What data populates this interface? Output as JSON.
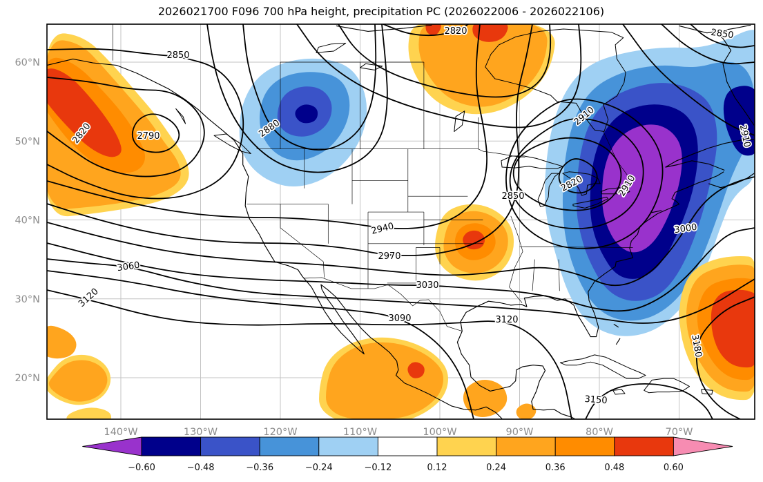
{
  "title": "2026021700 F096 700 hPa height, precipitation PC (2026022006 - 2026022106)",
  "chart_data": {
    "type": "heatmap",
    "subtype": "filled-contour weather map with overlaid geopotential height contours",
    "region": "North America",
    "title": "2026021700 F096 700 hPa height, precipitation PC (2026022006 - 2026022106)",
    "contour_field": {
      "name": "700 hPa geopotential height",
      "units": "m",
      "interval": 30,
      "levels": [
        2790,
        2820,
        2850,
        2880,
        2910,
        2940,
        2970,
        3000,
        3030,
        3060,
        3090,
        3120,
        3150,
        3180
      ],
      "labels": [
        "2850",
        "2820",
        "2790",
        "2880",
        "2820",
        "2850",
        "2910",
        "2910",
        "2850",
        "2820",
        "2910",
        "3000",
        "2940",
        "2970",
        "3030",
        "3060",
        "3090",
        "3120",
        "3120",
        "3150",
        "3180"
      ]
    },
    "shaded_field": {
      "name": "precipitation PC",
      "boundaries": [
        -0.6,
        -0.48,
        -0.36,
        -0.24,
        -0.12,
        0.12,
        0.24,
        0.36,
        0.48,
        0.6
      ]
    },
    "colorbar": {
      "tick_labels": [
        "−0.60",
        "−0.48",
        "−0.36",
        "−0.24",
        "−0.12",
        "0.12",
        "0.24",
        "0.36",
        "0.48",
        "0.60"
      ],
      "colors": [
        "#9932cc",
        "#00008b",
        "#3a53c8",
        "#4793d9",
        "#9fd0f3",
        "#ffffff",
        "#ffd34f",
        "#ffa51e",
        "#ff8c00",
        "#e8380d",
        "#f78cb2"
      ],
      "extend": "both"
    },
    "x_axis": {
      "tick_labels": [
        "140°W",
        "130°W",
        "120°W",
        "110°W",
        "100°W",
        "90°W",
        "80°W",
        "70°W"
      ]
    },
    "y_axis": {
      "tick_labels": [
        "60°N",
        "50°N",
        "40°N",
        "30°N",
        "20°N"
      ]
    },
    "grid": true,
    "anomaly_regions": [
      {
        "sign": "negative",
        "peak": "below −0.60",
        "location": "eastern North America (Great Lakes to Northeast / mid-Atlantic)"
      },
      {
        "sign": "negative",
        "peak": "below −0.48",
        "location": "British Columbia / Pacific Northwest"
      },
      {
        "sign": "negative",
        "peak": "below −0.48",
        "location": "Labrador / northwest Atlantic"
      },
      {
        "sign": "positive",
        "peak": "above 0.48",
        "location": "Gulf of Alaska / northeast Pacific"
      },
      {
        "sign": "positive",
        "peak": "above 0.48",
        "location": "central United States"
      },
      {
        "sign": "positive",
        "peak": "above 0.48",
        "location": "subtropical western Atlantic"
      },
      {
        "sign": "positive",
        "peak": "above 0.36",
        "location": "southern Mexico / Central America"
      },
      {
        "sign": "positive",
        "peak": "above 0.24",
        "location": "northern Canada near 100°W"
      }
    ]
  }
}
